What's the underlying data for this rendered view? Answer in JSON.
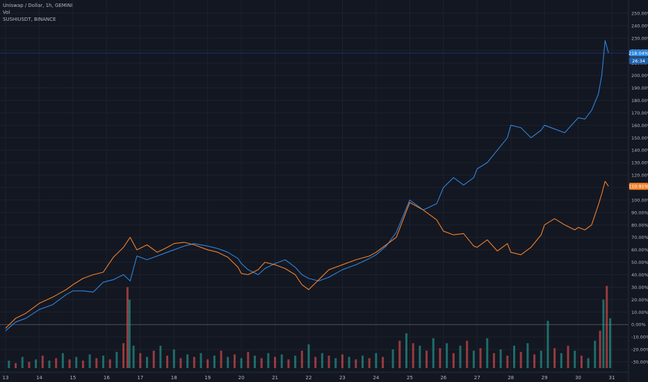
{
  "legend": {
    "line1": "Uniswap / Dollar, 1h, GEMINI",
    "line2": "Vol",
    "line3": "SUSHIUSDT, BINANCE"
  },
  "price_tags": {
    "uni_value": "218.04%",
    "uni_countdown": "26:34",
    "sushi_value": "110.91%"
  },
  "colors": {
    "background": "#131722",
    "grid": "#1e222d",
    "uni_line": "#2e86de",
    "sushi_line": "#f5822a",
    "vol_up": "#26a69a",
    "vol_down": "#ef5350",
    "zero_line": "#5d606b",
    "axis_text": "#b2b5be"
  },
  "chart_data": {
    "type": "line",
    "y_unit": "%",
    "ylim": [
      -35,
      255
    ],
    "y_ticks": [
      "250.00%",
      "240.00%",
      "230.00%",
      "220.00%",
      "210.00%",
      "200.00%",
      "190.00%",
      "180.00%",
      "170.00%",
      "160.00%",
      "150.00%",
      "140.00%",
      "130.00%",
      "120.00%",
      "110.00%",
      "100.00%",
      "90.00%",
      "80.00%",
      "70.00%",
      "60.00%",
      "50.00%",
      "40.00%",
      "30.00%",
      "20.00%",
      "10.00%",
      "0.00%",
      "-10.00%",
      "-20.00%",
      "-30.00%"
    ],
    "x_ticks": [
      "13",
      "14",
      "15",
      "16",
      "17",
      "18",
      "19",
      "20",
      "21",
      "22",
      "23",
      "24",
      "25",
      "26",
      "27",
      "28",
      "29",
      "30",
      "31"
    ],
    "x_range": [
      13,
      31
    ],
    "grid": true,
    "series": [
      {
        "key": "uni",
        "x": [
          13.0,
          13.3,
          13.6,
          14.0,
          14.4,
          14.8,
          15.0,
          15.3,
          15.6,
          15.9,
          16.2,
          16.5,
          16.7,
          16.9,
          17.2,
          17.5,
          17.8,
          18.0,
          18.3,
          18.6,
          19.0,
          19.3,
          19.6,
          19.9,
          20.0,
          20.2,
          20.5,
          20.7,
          21.0,
          21.3,
          21.6,
          21.8,
          22.0,
          22.3,
          22.6,
          23.0,
          23.4,
          23.8,
          24.0,
          24.3,
          24.6,
          25.0,
          25.4,
          25.8,
          26.0,
          26.3,
          26.6,
          26.9,
          27.0,
          27.3,
          27.6,
          27.9,
          28.0,
          28.3,
          28.6,
          28.9,
          29.0,
          29.3,
          29.6,
          29.9,
          30.0,
          30.2,
          30.4,
          30.6,
          30.7,
          30.8,
          30.9
        ],
        "y": [
          -5,
          2,
          5,
          12,
          16,
          24,
          27,
          27,
          26,
          34,
          36,
          40,
          35,
          55,
          52,
          55,
          58,
          60,
          63,
          65,
          63,
          61,
          58,
          53,
          49,
          44,
          40,
          45,
          49,
          52,
          46,
          40,
          37,
          35,
          38,
          44,
          48,
          53,
          56,
          63,
          74,
          100,
          92,
          97,
          110,
          118,
          112,
          118,
          125,
          130,
          140,
          150,
          160,
          158,
          150,
          156,
          160,
          157,
          154,
          163,
          166,
          165,
          172,
          185,
          200,
          228,
          218
        ],
        "last_label": "218.04%"
      },
      {
        "key": "sushi",
        "x": [
          13.0,
          13.3,
          13.6,
          14.0,
          14.4,
          14.8,
          15.0,
          15.3,
          15.6,
          15.9,
          16.2,
          16.5,
          16.7,
          16.9,
          17.2,
          17.5,
          17.8,
          18.0,
          18.3,
          18.6,
          19.0,
          19.3,
          19.6,
          19.9,
          20.0,
          20.2,
          20.5,
          20.7,
          21.0,
          21.3,
          21.6,
          21.8,
          22.0,
          22.3,
          22.6,
          23.0,
          23.4,
          23.8,
          24.0,
          24.3,
          24.6,
          25.0,
          25.4,
          25.8,
          26.0,
          26.3,
          26.6,
          26.9,
          27.0,
          27.3,
          27.6,
          27.9,
          28.0,
          28.3,
          28.6,
          28.9,
          29.0,
          29.3,
          29.6,
          29.9,
          30.0,
          30.2,
          30.4,
          30.6,
          30.7,
          30.8,
          30.9
        ],
        "y": [
          -3,
          5,
          9,
          17,
          22,
          28,
          32,
          37,
          40,
          42,
          54,
          62,
          70,
          60,
          64,
          58,
          62,
          65,
          66,
          64,
          60,
          58,
          54,
          46,
          41,
          40,
          44,
          50,
          48,
          45,
          40,
          32,
          28,
          36,
          44,
          48,
          52,
          55,
          58,
          64,
          70,
          98,
          92,
          84,
          75,
          72,
          73,
          63,
          62,
          68,
          59,
          65,
          58,
          56,
          62,
          72,
          80,
          85,
          80,
          76,
          78,
          76,
          80,
          96,
          105,
          115,
          111
        ],
        "last_label": "110.91%"
      }
    ],
    "volume": {
      "color_up": "#26a69a",
      "color_down": "#ef5350",
      "baseline": -35,
      "bars": [
        {
          "x": 13.1,
          "h": 6,
          "up": true
        },
        {
          "x": 13.3,
          "h": 4,
          "up": false
        },
        {
          "x": 13.5,
          "h": 9,
          "up": true
        },
        {
          "x": 13.7,
          "h": 5,
          "up": false
        },
        {
          "x": 13.9,
          "h": 7,
          "up": true
        },
        {
          "x": 14.1,
          "h": 10,
          "up": false
        },
        {
          "x": 14.3,
          "h": 6,
          "up": true
        },
        {
          "x": 14.5,
          "h": 8,
          "up": false
        },
        {
          "x": 14.7,
          "h": 12,
          "up": true
        },
        {
          "x": 14.9,
          "h": 7,
          "up": false
        },
        {
          "x": 15.1,
          "h": 9,
          "up": true
        },
        {
          "x": 15.3,
          "h": 6,
          "up": false
        },
        {
          "x": 15.5,
          "h": 11,
          "up": true
        },
        {
          "x": 15.7,
          "h": 8,
          "up": false
        },
        {
          "x": 15.9,
          "h": 10,
          "up": true
        },
        {
          "x": 16.1,
          "h": 7,
          "up": false
        },
        {
          "x": 16.3,
          "h": 13,
          "up": true
        },
        {
          "x": 16.5,
          "h": 20,
          "up": false
        },
        {
          "x": 16.62,
          "h": 65,
          "up": false
        },
        {
          "x": 16.68,
          "h": 55,
          "up": true
        },
        {
          "x": 16.8,
          "h": 18,
          "up": true
        },
        {
          "x": 17.0,
          "h": 12,
          "up": false
        },
        {
          "x": 17.2,
          "h": 9,
          "up": true
        },
        {
          "x": 17.4,
          "h": 14,
          "up": false
        },
        {
          "x": 17.6,
          "h": 18,
          "up": true
        },
        {
          "x": 17.8,
          "h": 10,
          "up": false
        },
        {
          "x": 18.0,
          "h": 15,
          "up": true
        },
        {
          "x": 18.2,
          "h": 8,
          "up": false
        },
        {
          "x": 18.4,
          "h": 11,
          "up": true
        },
        {
          "x": 18.6,
          "h": 9,
          "up": false
        },
        {
          "x": 18.8,
          "h": 12,
          "up": true
        },
        {
          "x": 19.0,
          "h": 7,
          "up": false
        },
        {
          "x": 19.2,
          "h": 10,
          "up": true
        },
        {
          "x": 19.4,
          "h": 14,
          "up": false
        },
        {
          "x": 19.6,
          "h": 9,
          "up": true
        },
        {
          "x": 19.8,
          "h": 11,
          "up": false
        },
        {
          "x": 20.0,
          "h": 8,
          "up": true
        },
        {
          "x": 20.2,
          "h": 13,
          "up": false
        },
        {
          "x": 20.4,
          "h": 10,
          "up": true
        },
        {
          "x": 20.6,
          "h": 8,
          "up": false
        },
        {
          "x": 20.8,
          "h": 12,
          "up": true
        },
        {
          "x": 21.0,
          "h": 9,
          "up": false
        },
        {
          "x": 21.2,
          "h": 11,
          "up": true
        },
        {
          "x": 21.4,
          "h": 7,
          "up": false
        },
        {
          "x": 21.6,
          "h": 10,
          "up": true
        },
        {
          "x": 21.8,
          "h": 14,
          "up": false
        },
        {
          "x": 22.0,
          "h": 19,
          "up": true
        },
        {
          "x": 22.2,
          "h": 9,
          "up": false
        },
        {
          "x": 22.4,
          "h": 12,
          "up": true
        },
        {
          "x": 22.6,
          "h": 10,
          "up": false
        },
        {
          "x": 22.8,
          "h": 8,
          "up": true
        },
        {
          "x": 23.0,
          "h": 11,
          "up": false
        },
        {
          "x": 23.2,
          "h": 9,
          "up": true
        },
        {
          "x": 23.4,
          "h": 7,
          "up": false
        },
        {
          "x": 23.6,
          "h": 10,
          "up": true
        },
        {
          "x": 23.8,
          "h": 8,
          "up": false
        },
        {
          "x": 24.0,
          "h": 12,
          "up": true
        },
        {
          "x": 24.2,
          "h": 9,
          "up": false
        },
        {
          "x": 24.5,
          "h": 15,
          "up": true
        },
        {
          "x": 24.7,
          "h": 22,
          "up": false
        },
        {
          "x": 24.9,
          "h": 28,
          "up": true
        },
        {
          "x": 25.1,
          "h": 20,
          "up": false
        },
        {
          "x": 25.3,
          "h": 18,
          "up": true
        },
        {
          "x": 25.5,
          "h": 14,
          "up": false
        },
        {
          "x": 25.7,
          "h": 24,
          "up": true
        },
        {
          "x": 25.9,
          "h": 16,
          "up": false
        },
        {
          "x": 26.1,
          "h": 20,
          "up": true
        },
        {
          "x": 26.3,
          "h": 12,
          "up": false
        },
        {
          "x": 26.5,
          "h": 18,
          "up": true
        },
        {
          "x": 26.7,
          "h": 22,
          "up": false
        },
        {
          "x": 26.9,
          "h": 14,
          "up": true
        },
        {
          "x": 27.1,
          "h": 16,
          "up": false
        },
        {
          "x": 27.3,
          "h": 24,
          "up": true
        },
        {
          "x": 27.5,
          "h": 12,
          "up": false
        },
        {
          "x": 27.7,
          "h": 15,
          "up": true
        },
        {
          "x": 27.9,
          "h": 10,
          "up": false
        },
        {
          "x": 28.1,
          "h": 18,
          "up": true
        },
        {
          "x": 28.3,
          "h": 13,
          "up": false
        },
        {
          "x": 28.5,
          "h": 20,
          "up": true
        },
        {
          "x": 28.7,
          "h": 11,
          "up": false
        },
        {
          "x": 28.9,
          "h": 14,
          "up": true
        },
        {
          "x": 29.1,
          "h": 38,
          "up": true
        },
        {
          "x": 29.3,
          "h": 16,
          "up": false
        },
        {
          "x": 29.5,
          "h": 12,
          "up": true
        },
        {
          "x": 29.7,
          "h": 18,
          "up": false
        },
        {
          "x": 29.9,
          "h": 14,
          "up": true
        },
        {
          "x": 30.1,
          "h": 10,
          "up": false
        },
        {
          "x": 30.3,
          "h": 8,
          "up": true
        },
        {
          "x": 30.5,
          "h": 22,
          "up": true
        },
        {
          "x": 30.65,
          "h": 30,
          "up": false
        },
        {
          "x": 30.75,
          "h": 55,
          "up": true
        },
        {
          "x": 30.85,
          "h": 66,
          "up": false
        },
        {
          "x": 30.95,
          "h": 40,
          "up": true
        }
      ]
    },
    "zero_line": 0
  }
}
